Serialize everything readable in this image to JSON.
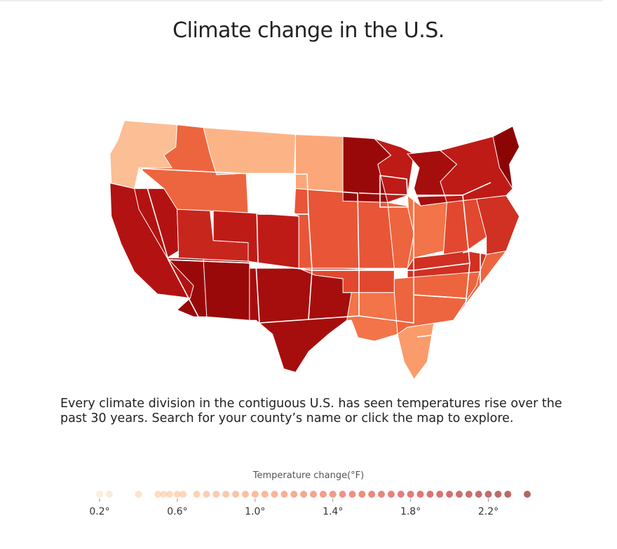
{
  "title": "Climate change in the U.S.",
  "description": "Every climate division in the contiguous U.S. has seen temperatures rise over the past 30 years. Search for your county’s name or click the map to explore.",
  "legend": {
    "title": "Temperature change(°F)",
    "ticks": [
      {
        "value": 0.2,
        "label": "0.2°"
      },
      {
        "value": 0.6,
        "label": "0.6°"
      },
      {
        "value": 1.0,
        "label": "1.0°"
      },
      {
        "value": 1.4,
        "label": "1.4°"
      },
      {
        "value": 1.8,
        "label": "1.8°"
      },
      {
        "value": 2.2,
        "label": "2.2°"
      }
    ],
    "range": [
      0.2,
      2.4
    ],
    "dots": [
      0.2,
      0.25,
      0.4,
      0.5,
      0.53,
      0.56,
      0.6,
      0.63,
      0.7,
      0.75,
      0.8,
      0.85,
      0.9,
      0.95,
      1.0,
      1.05,
      1.1,
      1.15,
      1.2,
      1.25,
      1.3,
      1.35,
      1.4,
      1.45,
      1.5,
      1.55,
      1.6,
      1.65,
      1.7,
      1.75,
      1.8,
      1.85,
      1.9,
      1.95,
      2.0,
      2.05,
      2.1,
      2.15,
      2.2,
      2.25,
      2.3,
      2.4
    ],
    "color_scale": [
      "#fde0c5",
      "#fcbb8f",
      "#f98552",
      "#e1452d",
      "#b81414",
      "#7f0000"
    ]
  },
  "map": {
    "regions": [
      {
        "name": "pacific-northwest",
        "value": 0.6
      },
      {
        "name": "northern-rockies",
        "value": 1.3
      },
      {
        "name": "montana-plains",
        "value": 0.7
      },
      {
        "name": "dakotas",
        "value": 0.8
      },
      {
        "name": "minnesota",
        "value": 2.2
      },
      {
        "name": "california",
        "value": 2.0
      },
      {
        "name": "nevada",
        "value": 2.0
      },
      {
        "name": "utah",
        "value": 1.8
      },
      {
        "name": "colorado",
        "value": 1.9
      },
      {
        "name": "nebraska-kansas",
        "value": 1.4
      },
      {
        "name": "iowa-missouri",
        "value": 1.3
      },
      {
        "name": "arizona",
        "value": 2.2
      },
      {
        "name": "new-mexico",
        "value": 2.2
      },
      {
        "name": "texas",
        "value": 2.1
      },
      {
        "name": "oklahoma",
        "value": 1.5
      },
      {
        "name": "arkansas-louisiana",
        "value": 1.2
      },
      {
        "name": "wisconsin",
        "value": 1.9
      },
      {
        "name": "michigan",
        "value": 2.1
      },
      {
        "name": "illinois-indiana",
        "value": 1.2
      },
      {
        "name": "ohio-kentucky",
        "value": 1.5
      },
      {
        "name": "tennessee",
        "value": 1.7
      },
      {
        "name": "deep-south",
        "value": 1.3
      },
      {
        "name": "georgia-carolinas",
        "value": 1.3
      },
      {
        "name": "florida",
        "value": 0.9
      },
      {
        "name": "virginia-maryland",
        "value": 1.7
      },
      {
        "name": "new-york-pennsylvania",
        "value": 1.9
      },
      {
        "name": "new-england",
        "value": 2.3
      }
    ]
  }
}
